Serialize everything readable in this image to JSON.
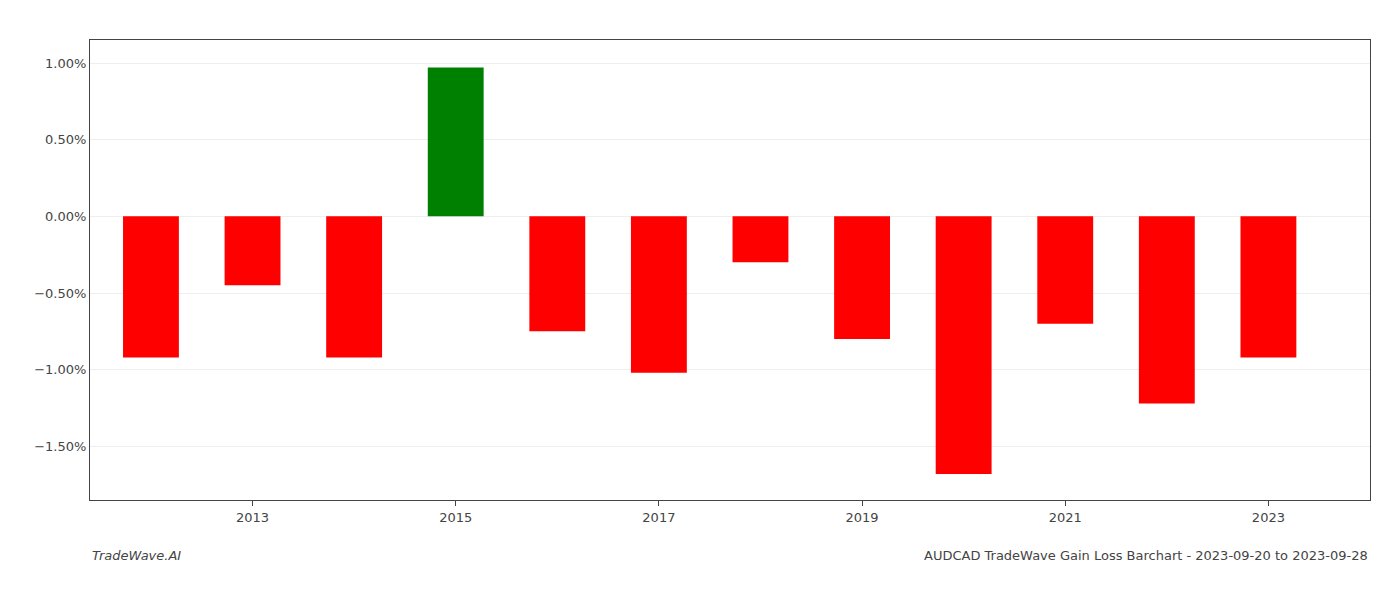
{
  "chart_data": {
    "type": "bar",
    "x": [
      2012,
      2013,
      2014,
      2015,
      2016,
      2017,
      2018,
      2019,
      2020,
      2021,
      2022,
      2023
    ],
    "values": [
      -0.92,
      -0.45,
      -0.92,
      0.97,
      -0.75,
      -1.02,
      -0.3,
      -0.8,
      -1.68,
      -0.7,
      -1.22,
      -0.92
    ],
    "colors": [
      "#ff0000",
      "#ff0000",
      "#ff0000",
      "#008000",
      "#ff0000",
      "#ff0000",
      "#ff0000",
      "#ff0000",
      "#ff0000",
      "#ff0000",
      "#ff0000",
      "#ff0000"
    ],
    "xlim": [
      2011.4,
      2024.0
    ],
    "xticks": [
      2013,
      2015,
      2017,
      2019,
      2021,
      2023
    ],
    "ylim": [
      -1.85,
      1.15
    ],
    "yticks": [
      {
        "value": 1.0,
        "label": "1.00%"
      },
      {
        "value": 0.5,
        "label": "0.50%"
      },
      {
        "value": 0.0,
        "label": "0.00%"
      },
      {
        "value": -0.5,
        "label": "−0.50%"
      },
      {
        "value": -1.0,
        "label": "−1.00%"
      },
      {
        "value": -1.5,
        "label": "−1.50%"
      }
    ],
    "grid": "y",
    "annotations": [
      "TradeWave.AI",
      "AUDCAD TradeWave Gain Loss Barchart - 2023-09-20 to 2023-09-28"
    ]
  }
}
